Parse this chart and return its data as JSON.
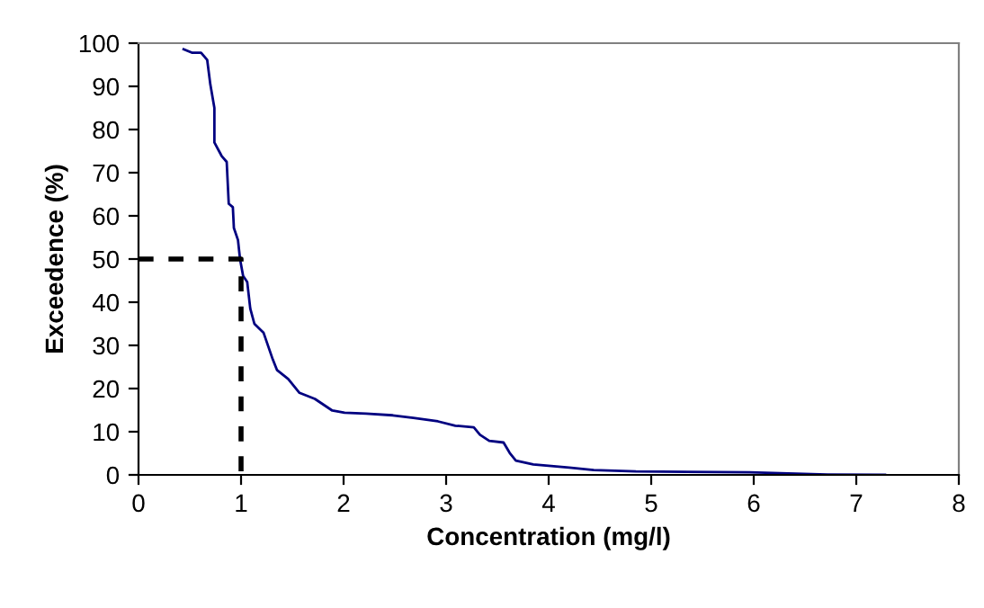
{
  "chart_data": {
    "type": "line",
    "xlabel": "Concentration (mg/l)",
    "ylabel": "Exceedence (%)",
    "xlim": [
      0,
      8
    ],
    "ylim": [
      0,
      100
    ],
    "xticks": [
      0,
      1,
      2,
      3,
      4,
      5,
      6,
      7,
      8
    ],
    "yticks": [
      0,
      10,
      20,
      30,
      40,
      50,
      60,
      70,
      80,
      90,
      100
    ],
    "grid": false,
    "marker": "none",
    "series": [
      {
        "color": "#000080",
        "line_style": "solid",
        "x": [
          0.44,
          0.52,
          0.61,
          0.67,
          0.7,
          0.74,
          0.74,
          0.81,
          0.86,
          0.88,
          0.92,
          0.93,
          0.97,
          0.99,
          1.02,
          1.06,
          1.09,
          1.13,
          1.22,
          1.31,
          1.35,
          1.46,
          1.57,
          1.72,
          1.89,
          2.01,
          2.22,
          2.48,
          2.68,
          2.92,
          3.09,
          3.27,
          3.33,
          3.42,
          3.56,
          3.62,
          3.68,
          3.85,
          4.2,
          4.44,
          4.85,
          5.96,
          6.72,
          7.28
        ],
        "values": [
          98.6,
          97.8,
          97.8,
          96.1,
          90.5,
          85,
          77,
          73.9,
          72.5,
          62.8,
          62,
          57.2,
          54.4,
          50,
          46.1,
          44.7,
          38.5,
          35,
          32.9,
          26.7,
          24.3,
          22.2,
          19,
          17.6,
          14.9,
          14.4,
          14.2,
          13.8,
          13.2,
          12.4,
          11.4,
          11,
          9.3,
          7.9,
          7.5,
          5.1,
          3.3,
          2.4,
          1.7,
          1.1,
          0.8,
          0.6,
          0.1,
          0
        ]
      },
      {
        "color": "#000000",
        "line_style": "dashed",
        "x": [
          0,
          1,
          1
        ],
        "values": [
          50,
          50,
          0
        ]
      }
    ]
  }
}
